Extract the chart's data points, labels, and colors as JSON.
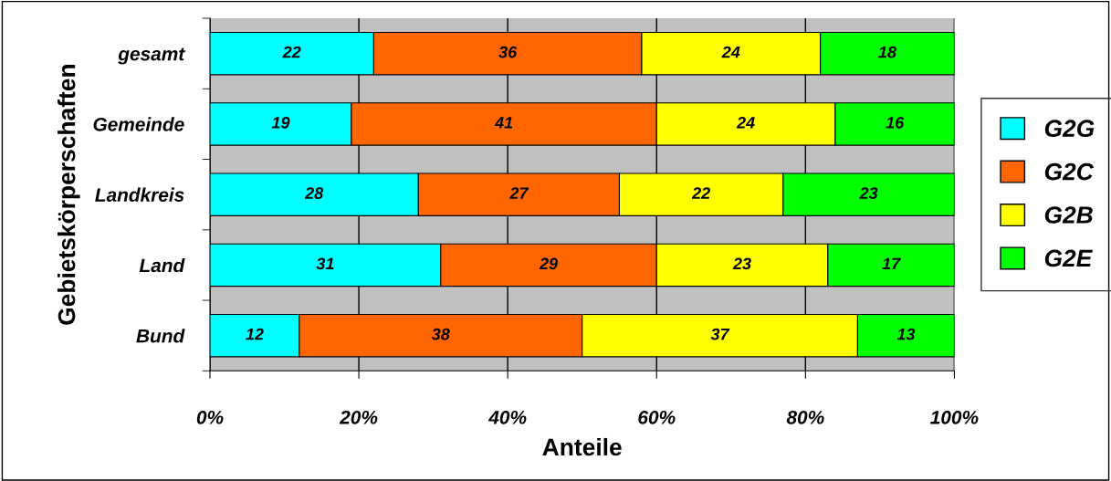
{
  "chart_data": {
    "type": "bar",
    "orientation": "horizontal",
    "stacked": true,
    "xlabel": "Anteile",
    "ylabel": "Gebietskörperschaften",
    "categories": [
      "gesamt",
      "Gemeinde",
      "Landkreis",
      "Land",
      "Bund"
    ],
    "series": [
      {
        "name": "G2G",
        "color": "#00ffff",
        "values": [
          22,
          19,
          28,
          31,
          12
        ]
      },
      {
        "name": "G2C",
        "color": "#ff6600",
        "values": [
          36,
          41,
          27,
          29,
          38
        ]
      },
      {
        "name": "G2B",
        "color": "#ffff00",
        "values": [
          24,
          24,
          22,
          23,
          37
        ]
      },
      {
        "name": "G2E",
        "color": "#00ff00",
        "values": [
          18,
          16,
          23,
          17,
          13
        ]
      }
    ],
    "xlim": [
      0,
      100
    ],
    "xticks": [
      {
        "value": 0,
        "label": "0%"
      },
      {
        "value": 20,
        "label": "20%"
      },
      {
        "value": 40,
        "label": "40%"
      },
      {
        "value": 60,
        "label": "60%"
      },
      {
        "value": 80,
        "label": "80%"
      },
      {
        "value": 100,
        "label": "100%"
      }
    ],
    "grid": "x",
    "legend": "right",
    "data_labels": true
  }
}
